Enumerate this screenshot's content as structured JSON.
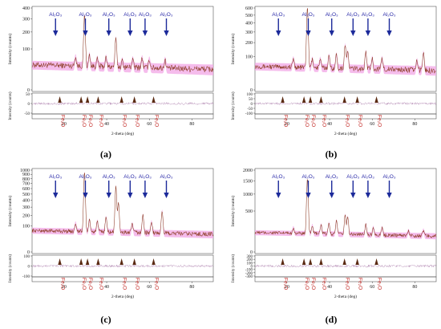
{
  "colors": {
    "pattern": "#8a3a20",
    "band": "#f2a6e6",
    "al_arrow": "#1c2a9a",
    "fe_marker": "#5a2a12",
    "fe_label": "#c0201c"
  },
  "chart_data": [
    {
      "type": "line",
      "panel_label": "(a)",
      "xlabel": "2-theta (deg)",
      "ylabel": "Intensity (counts)",
      "resid_ylabel": "Intensity (counts)",
      "xlim": [
        5,
        90
      ],
      "ylim": [
        0,
        400
      ],
      "y_scale": "sqrt",
      "y_ticks": [
        "0",
        "100",
        "200",
        "300",
        "400"
      ],
      "x_ticks": [
        "20",
        "40",
        "60",
        "80"
      ],
      "resid_ylim": [
        -50,
        50
      ],
      "resid_ticks": [
        "50",
        "0",
        "-50"
      ],
      "background": 30,
      "noise": 8,
      "peaks": [
        [
          29.6,
          300
        ],
        [
          44.3,
          130
        ],
        [
          25.4,
          30
        ],
        [
          31.9,
          40
        ],
        [
          35.6,
          25
        ],
        [
          39.7,
          30
        ],
        [
          47.3,
          20
        ],
        [
          52.2,
          25
        ],
        [
          56.6,
          30
        ],
        [
          60.0,
          25
        ],
        [
          67.4,
          25
        ]
      ],
      "al_label": "Al₂O₃",
      "al_positions": [
        16,
        30,
        41,
        51,
        58,
        68
      ],
      "fe_label": "Fe₂O",
      "fe_positions": [
        18,
        28,
        31,
        36,
        47,
        53,
        62
      ]
    },
    {
      "type": "line",
      "panel_label": "(b)",
      "xlabel": "2-theta (deg)",
      "ylabel": "Intensity (counts)",
      "resid_ylabel": "Intensity (counts)",
      "xlim": [
        5,
        90
      ],
      "ylim": [
        0,
        600
      ],
      "y_scale": "sqrt",
      "y_ticks": [
        "0",
        "100",
        "200",
        "300",
        "400",
        "500",
        "600"
      ],
      "x_ticks": [
        "20",
        "40",
        "60",
        "80"
      ],
      "resid_ylim": [
        -100,
        100
      ],
      "resid_ticks": [
        "100",
        "50",
        "0",
        "-50",
        "-100"
      ],
      "background": 40,
      "noise": 10,
      "peaks": [
        [
          29.6,
          560
        ],
        [
          47.3,
          140
        ],
        [
          48.5,
          90
        ],
        [
          39.7,
          60
        ],
        [
          43.2,
          70
        ],
        [
          23.0,
          40
        ],
        [
          31.9,
          40
        ],
        [
          35.6,
          40
        ],
        [
          57.0,
          90
        ],
        [
          60.0,
          50
        ],
        [
          64.6,
          50
        ],
        [
          84.0,
          90
        ],
        [
          81.0,
          40
        ]
      ],
      "al_label": "Al₂O₃",
      "al_positions": [
        16,
        30,
        41,
        51,
        58,
        68
      ],
      "fe_label": "Fe₂O",
      "fe_positions": [
        18,
        28,
        31,
        36,
        47,
        53,
        62
      ]
    },
    {
      "type": "line",
      "panel_label": "(c)",
      "xlabel": "2-theta (deg)",
      "ylabel": "Intensity (counts)",
      "resid_ylabel": "Intensity (counts)",
      "xlim": [
        5,
        90
      ],
      "ylim": [
        0,
        1000
      ],
      "y_scale": "sqrt",
      "y_ticks": [
        "0",
        "100",
        "200",
        "300",
        "400",
        "500",
        "600",
        "700",
        "800",
        "900",
        "1000"
      ],
      "x_ticks": [
        "20",
        "40",
        "60",
        "80"
      ],
      "resid_ylim": [
        -100,
        100
      ],
      "resid_ticks": [
        "100",
        "0",
        "-100"
      ],
      "background": 55,
      "noise": 12,
      "peaks": [
        [
          29.6,
          900
        ],
        [
          44.3,
          600
        ],
        [
          45.5,
          300
        ],
        [
          39.7,
          120
        ],
        [
          35.6,
          80
        ],
        [
          31.9,
          90
        ],
        [
          25.4,
          60
        ],
        [
          66.0,
          200
        ],
        [
          57.0,
          150
        ],
        [
          61.0,
          80
        ],
        [
          52.0,
          60
        ]
      ],
      "al_label": "Al₂O₃",
      "al_positions": [
        16,
        30,
        41,
        51,
        58,
        68
      ],
      "fe_label": "Fe₂O",
      "fe_positions": [
        18,
        28,
        31,
        36,
        47,
        53,
        62
      ]
    },
    {
      "type": "line",
      "panel_label": "(d)",
      "xlabel": "2-theta (deg)",
      "ylabel": "Intensity (counts)",
      "resid_ylabel": "Intensity (counts)",
      "xlim": [
        5,
        90
      ],
      "ylim": [
        0,
        2000
      ],
      "y_scale": "sqrt",
      "y_ticks": [
        "0",
        "500",
        "1000",
        "1500",
        "2000"
      ],
      "x_ticks": [
        "20",
        "40",
        "60",
        "80"
      ],
      "resid_ylim": [
        -300,
        300
      ],
      "resid_ticks": [
        "300",
        "200",
        "100",
        "0",
        "-100",
        "-200",
        "-300"
      ],
      "background": 90,
      "noise": 18,
      "peaks": [
        [
          29.6,
          1500
        ],
        [
          47.3,
          320
        ],
        [
          48.5,
          280
        ],
        [
          39.7,
          150
        ],
        [
          36.0,
          120
        ],
        [
          43.2,
          200
        ],
        [
          31.9,
          110
        ],
        [
          23.0,
          70
        ],
        [
          57.0,
          140
        ],
        [
          60.5,
          90
        ],
        [
          64.6,
          90
        ],
        [
          84.0,
          60
        ],
        [
          77.0,
          50
        ]
      ],
      "al_label": "Al₂O₃",
      "al_positions": [
        16,
        30,
        41,
        51,
        58,
        68
      ],
      "fe_label": "Fe₂O",
      "fe_positions": [
        18,
        28,
        31,
        36,
        47,
        53,
        62
      ]
    }
  ]
}
